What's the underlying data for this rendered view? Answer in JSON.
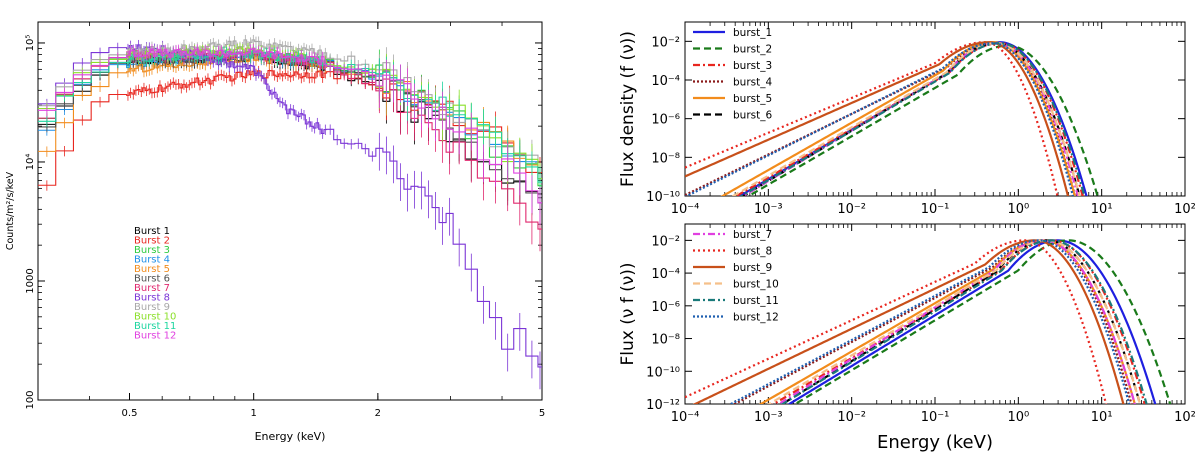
{
  "chart_data": [
    {
      "type": "line",
      "xlabel": "Energy (keV)",
      "ylabel": "Counts/m²/s/keV",
      "xscale": "log",
      "yscale": "log",
      "xlim": [
        0.3,
        5
      ],
      "ylim": [
        100,
        150000
      ],
      "x_ticks": [
        {
          "v": 0.5,
          "label": "0.5"
        },
        {
          "v": 1,
          "label": "1"
        },
        {
          "v": 2,
          "label": "2"
        },
        {
          "v": 5,
          "label": "5"
        }
      ],
      "y_ticks": [
        {
          "v": 100,
          "label": "100"
        },
        {
          "v": 1000,
          "label": "1000"
        },
        {
          "v": 10000,
          "label": "10⁴"
        },
        {
          "v": 100000,
          "label": "10⁵"
        }
      ],
      "legend_position": "lower-left",
      "series": [
        {
          "name": "Burst  1",
          "color": "#000000",
          "values": [
            [
              0.3,
              17000
            ],
            [
              0.33,
              22000
            ],
            [
              0.4,
              50000
            ],
            [
              0.5,
              70000
            ],
            [
              0.7,
              72000
            ],
            [
              1.0,
              75000
            ],
            [
              1.5,
              62000
            ],
            [
              2.0,
              42000
            ],
            [
              3.0,
              18000
            ],
            [
              4.0,
              9000
            ],
            [
              5.0,
              6000
            ]
          ]
        },
        {
          "name": "Burst  2",
          "color": "#e8261f",
          "values": [
            [
              0.3,
              5000
            ],
            [
              0.33,
              9000
            ],
            [
              0.4,
              30000
            ],
            [
              0.5,
              37000
            ],
            [
              0.7,
              46000
            ],
            [
              1.0,
              55000
            ],
            [
              1.5,
              55000
            ],
            [
              2.0,
              44000
            ],
            [
              3.0,
              26000
            ],
            [
              4.0,
              16000
            ],
            [
              5.0,
              9000
            ]
          ]
        },
        {
          "name": "Burst  3",
          "color": "#2ecc40",
          "values": [
            [
              0.3,
              20000
            ],
            [
              0.33,
              28000
            ],
            [
              0.4,
              58000
            ],
            [
              0.5,
              75000
            ],
            [
              0.7,
              80000
            ],
            [
              1.0,
              82000
            ],
            [
              1.5,
              70000
            ],
            [
              2.0,
              52000
            ],
            [
              3.0,
              25000
            ],
            [
              4.0,
              12000
            ],
            [
              5.0,
              7000
            ]
          ]
        },
        {
          "name": "Burst  4",
          "color": "#1f8fe8",
          "values": [
            [
              0.3,
              15000
            ],
            [
              0.33,
              22000
            ],
            [
              0.4,
              52000
            ],
            [
              0.5,
              68000
            ],
            [
              0.7,
              72000
            ],
            [
              1.0,
              78000
            ],
            [
              1.5,
              68000
            ],
            [
              2.0,
              52000
            ],
            [
              3.0,
              25000
            ],
            [
              4.0,
              13000
            ],
            [
              5.0,
              8000
            ]
          ]
        },
        {
          "name": "Burst  5",
          "color": "#f28c1c",
          "values": [
            [
              0.3,
              9000
            ],
            [
              0.33,
              15000
            ],
            [
              0.4,
              42000
            ],
            [
              0.5,
              60000
            ],
            [
              0.7,
              68000
            ],
            [
              1.0,
              74000
            ],
            [
              1.5,
              66000
            ],
            [
              2.0,
              52000
            ],
            [
              3.0,
              26000
            ],
            [
              4.0,
              14000
            ],
            [
              5.0,
              8000
            ]
          ]
        },
        {
          "name": "Burst  6",
          "color": "#505050",
          "values": [
            [
              0.3,
              18000
            ],
            [
              0.33,
              25000
            ],
            [
              0.4,
              55000
            ],
            [
              0.5,
              72000
            ],
            [
              0.7,
              74000
            ],
            [
              1.0,
              77000
            ],
            [
              1.5,
              66000
            ],
            [
              2.0,
              50000
            ],
            [
              3.0,
              22000
            ],
            [
              4.0,
              9000
            ],
            [
              5.0,
              5000
            ]
          ]
        },
        {
          "name": "Burst  7",
          "color": "#e0286e",
          "values": [
            [
              0.3,
              21000
            ],
            [
              0.33,
              28000
            ],
            [
              0.4,
              60000
            ],
            [
              0.5,
              80000
            ],
            [
              0.7,
              78000
            ],
            [
              1.0,
              80000
            ],
            [
              1.5,
              65000
            ],
            [
              2.0,
              45000
            ],
            [
              3.0,
              15000
            ],
            [
              4.0,
              6000
            ],
            [
              5.0,
              3000
            ]
          ]
        },
        {
          "name": "Burst  8",
          "color": "#7b35d6",
          "values": [
            [
              0.3,
              25000
            ],
            [
              0.33,
              38000
            ],
            [
              0.4,
              78000
            ],
            [
              0.5,
              95000
            ],
            [
              0.7,
              82000
            ],
            [
              1.0,
              60000
            ],
            [
              1.2,
              28000
            ],
            [
              1.5,
              18000
            ],
            [
              2.0,
              11000
            ],
            [
              2.5,
              6500
            ],
            [
              3.0,
              3000
            ],
            [
              3.5,
              900
            ],
            [
              4.0,
              300
            ],
            [
              4.5,
              400
            ],
            [
              5.0,
              200
            ]
          ]
        },
        {
          "name": "Burst  9",
          "color": "#a8a8a8",
          "values": [
            [
              0.3,
              25000
            ],
            [
              0.33,
              33000
            ],
            [
              0.4,
              65000
            ],
            [
              0.5,
              85000
            ],
            [
              0.7,
              90000
            ],
            [
              1.0,
              100000
            ],
            [
              1.5,
              82000
            ],
            [
              2.0,
              62000
            ],
            [
              3.0,
              28000
            ],
            [
              4.0,
              14000
            ],
            [
              5.0,
              8000
            ]
          ]
        },
        {
          "name": "Burst  10",
          "color": "#8be02a",
          "values": [
            [
              0.3,
              23000
            ],
            [
              0.33,
              30000
            ],
            [
              0.4,
              60000
            ],
            [
              0.5,
              78000
            ],
            [
              0.7,
              82000
            ],
            [
              1.0,
              85000
            ],
            [
              1.5,
              72000
            ],
            [
              2.0,
              55000
            ],
            [
              3.0,
              27000
            ],
            [
              4.0,
              14000
            ],
            [
              5.0,
              8000
            ]
          ]
        },
        {
          "name": "Burst  11",
          "color": "#1ed6a0",
          "values": [
            [
              0.3,
              20000
            ],
            [
              0.33,
              27000
            ],
            [
              0.4,
              57000
            ],
            [
              0.5,
              74000
            ],
            [
              0.7,
              78000
            ],
            [
              1.0,
              80000
            ],
            [
              1.5,
              70000
            ],
            [
              2.0,
              53000
            ],
            [
              3.0,
              26000
            ],
            [
              4.0,
              13000
            ],
            [
              5.0,
              7500
            ]
          ]
        },
        {
          "name": "Burst  12",
          "color": "#e040e0",
          "values": [
            [
              0.3,
              24000
            ],
            [
              0.33,
              32000
            ],
            [
              0.4,
              63000
            ],
            [
              0.5,
              82000
            ],
            [
              0.7,
              82000
            ],
            [
              1.0,
              84000
            ],
            [
              1.5,
              70000
            ],
            [
              2.0,
              52000
            ],
            [
              3.0,
              22000
            ],
            [
              4.0,
              9500
            ],
            [
              5.0,
              5000
            ]
          ]
        }
      ]
    },
    {
      "type": "line",
      "xlabel": "",
      "ylabel": "Flux density (f (ν))",
      "xscale": "log",
      "yscale": "log",
      "xlim": [
        0.0001,
        100
      ],
      "ylim": [
        1e-10,
        0.1
      ],
      "x_ticks": [
        {
          "v": 0.0001,
          "label": "10⁻⁴"
        },
        {
          "v": 0.001,
          "label": "10⁻³"
        },
        {
          "v": 0.01,
          "label": "10⁻²"
        },
        {
          "v": 0.1,
          "label": "10⁻¹"
        },
        {
          "v": 1,
          "label": "10⁰"
        },
        {
          "v": 10,
          "label": "10¹"
        },
        {
          "v": 100,
          "label": "10²"
        }
      ],
      "y_ticks": [
        {
          "v": 1e-10,
          "label": "10⁻¹⁰"
        },
        {
          "v": 1e-08,
          "label": "10⁻⁸"
        },
        {
          "v": 1e-06,
          "label": "10⁻⁶"
        },
        {
          "v": 0.0001,
          "label": "10⁻⁴"
        },
        {
          "v": 0.01,
          "label": "10⁻²"
        }
      ],
      "legend_position": "upper-left",
      "legend": [
        "burst_1",
        "burst_2",
        "burst_3",
        "burst_4",
        "burst_5",
        "burst_6"
      ],
      "model": "log-parabola",
      "series": [
        {
          "name": "burst_1",
          "color": "#1f1fe0",
          "dash": "",
          "peak_energy": 0.6,
          "peak_value": 0.009,
          "low_slope": 2.55,
          "curvature": 2.3
        },
        {
          "name": "burst_2",
          "color": "#1a7a1a",
          "dash": "7 4",
          "peak_energy": 0.75,
          "peak_value": 0.006,
          "low_slope": 2.5,
          "curvature": 2.1
        },
        {
          "name": "burst_3",
          "color": "#e8261f",
          "dash": "7 3 2 3",
          "peak_energy": 0.6,
          "peak_value": 0.008,
          "low_slope": 2.5,
          "curvature": 2.5
        },
        {
          "name": "burst_4",
          "color": "#8b1a1a",
          "dash": "2 2",
          "peak_energy": 0.55,
          "peak_value": 0.008,
          "low_slope": 2.1,
          "curvature": 2.8
        },
        {
          "name": "burst_5",
          "color": "#f28c1c",
          "dash": "",
          "peak_energy": 0.5,
          "peak_value": 0.009,
          "low_slope": 2.45,
          "curvature": 2.6
        },
        {
          "name": "burst_6",
          "color": "#000000",
          "dash": "7 4",
          "peak_energy": 0.55,
          "peak_value": 0.008,
          "low_slope": 2.6,
          "curvature": 2.5
        },
        {
          "name": "burst_7",
          "color": "#e040e0",
          "dash": "7 3 2 3",
          "peak_energy": 0.55,
          "peak_value": 0.008,
          "low_slope": 2.6,
          "curvature": 2.6
        },
        {
          "name": "burst_8",
          "color": "#e8261f",
          "dash": "2 3",
          "peak_energy": 0.4,
          "peak_value": 0.009,
          "low_slope": 1.8,
          "curvature": 3.3
        },
        {
          "name": "burst_9",
          "color": "#c8501a",
          "dash": "",
          "peak_energy": 0.45,
          "peak_value": 0.009,
          "low_slope": 1.9,
          "curvature": 2.8
        },
        {
          "name": "burst_10",
          "color": "#f5c08a",
          "dash": "7 4",
          "peak_energy": 0.55,
          "peak_value": 0.008,
          "low_slope": 2.5,
          "curvature": 2.5
        },
        {
          "name": "burst_11",
          "color": "#1a7a7a",
          "dash": "7 3 2 3",
          "peak_energy": 0.6,
          "peak_value": 0.008,
          "low_slope": 2.55,
          "curvature": 2.4
        },
        {
          "name": "burst_12",
          "color": "#1f5fb0",
          "dash": "2 2",
          "peak_energy": 0.5,
          "peak_value": 0.008,
          "low_slope": 2.15,
          "curvature": 2.7
        }
      ]
    },
    {
      "type": "line",
      "xlabel": "Energy (keV)",
      "ylabel": "Flux (ν f (ν))",
      "xscale": "log",
      "yscale": "log",
      "xlim": [
        0.0001,
        100
      ],
      "ylim": [
        1e-12,
        0.1
      ],
      "x_ticks": [
        {
          "v": 0.0001,
          "label": "10⁻⁴"
        },
        {
          "v": 0.001,
          "label": "10⁻³"
        },
        {
          "v": 0.01,
          "label": "10⁻²"
        },
        {
          "v": 0.1,
          "label": "10⁻¹"
        },
        {
          "v": 1,
          "label": "10⁰"
        },
        {
          "v": 10,
          "label": "10¹"
        },
        {
          "v": 100,
          "label": "10²"
        }
      ],
      "y_ticks": [
        {
          "v": 1e-12,
          "label": "10⁻¹²"
        },
        {
          "v": 1e-10,
          "label": "10⁻¹⁰"
        },
        {
          "v": 1e-08,
          "label": "10⁻⁸"
        },
        {
          "v": 1e-06,
          "label": "10⁻⁶"
        },
        {
          "v": 0.0001,
          "label": "10⁻⁴"
        },
        {
          "v": 0.01,
          "label": "10⁻²"
        }
      ],
      "legend_position": "upper-left",
      "legend": [
        "burst_7",
        "burst_8",
        "burst_9",
        "burst_10",
        "burst_11",
        "burst_12"
      ],
      "model": "log-parabola",
      "series": [
        {
          "name": "burst_1",
          "color": "#1f1fe0",
          "dash": "",
          "peak_energy": 3.0,
          "peak_value": 0.01,
          "low_slope": 3.1,
          "curvature": 2.3
        },
        {
          "name": "burst_2",
          "color": "#1a7a1a",
          "dash": "7 4",
          "peak_energy": 4.0,
          "peak_value": 0.01,
          "low_slope": 3.05,
          "curvature": 2.1
        },
        {
          "name": "burst_3",
          "color": "#e8261f",
          "dash": "7 3 2 3",
          "peak_energy": 2.5,
          "peak_value": 0.01,
          "low_slope": 3.0,
          "curvature": 2.5
        },
        {
          "name": "burst_4",
          "color": "#8b1a1a",
          "dash": "2 2",
          "peak_energy": 2.0,
          "peak_value": 0.01,
          "low_slope": 2.7,
          "curvature": 2.8
        },
        {
          "name": "burst_5",
          "color": "#f28c1c",
          "dash": "",
          "peak_energy": 2.0,
          "peak_value": 0.01,
          "low_slope": 2.95,
          "curvature": 2.6
        },
        {
          "name": "burst_6",
          "color": "#000000",
          "dash": "7 4",
          "peak_energy": 2.2,
          "peak_value": 0.01,
          "low_slope": 3.15,
          "curvature": 2.5
        },
        {
          "name": "burst_7",
          "color": "#e040e0",
          "dash": "7 3 2 3",
          "peak_energy": 2.0,
          "peak_value": 0.01,
          "low_slope": 3.15,
          "curvature": 2.6
        },
        {
          "name": "burst_8",
          "color": "#e8261f",
          "dash": "2 3",
          "peak_energy": 1.2,
          "peak_value": 0.01,
          "low_slope": 2.35,
          "curvature": 3.3
        },
        {
          "name": "burst_9",
          "color": "#c8501a",
          "dash": "",
          "peak_energy": 1.6,
          "peak_value": 0.01,
          "low_slope": 2.45,
          "curvature": 2.8
        },
        {
          "name": "burst_10",
          "color": "#f5c08a",
          "dash": "7 4",
          "peak_energy": 2.2,
          "peak_value": 0.01,
          "low_slope": 3.0,
          "curvature": 2.5
        },
        {
          "name": "burst_11",
          "color": "#1a7a7a",
          "dash": "7 3 2 3",
          "peak_energy": 2.5,
          "peak_value": 0.01,
          "low_slope": 3.1,
          "curvature": 2.4
        },
        {
          "name": "burst_12",
          "color": "#1f5fb0",
          "dash": "2 2",
          "peak_energy": 1.8,
          "peak_value": 0.01,
          "low_slope": 2.7,
          "curvature": 2.7
        }
      ]
    }
  ]
}
